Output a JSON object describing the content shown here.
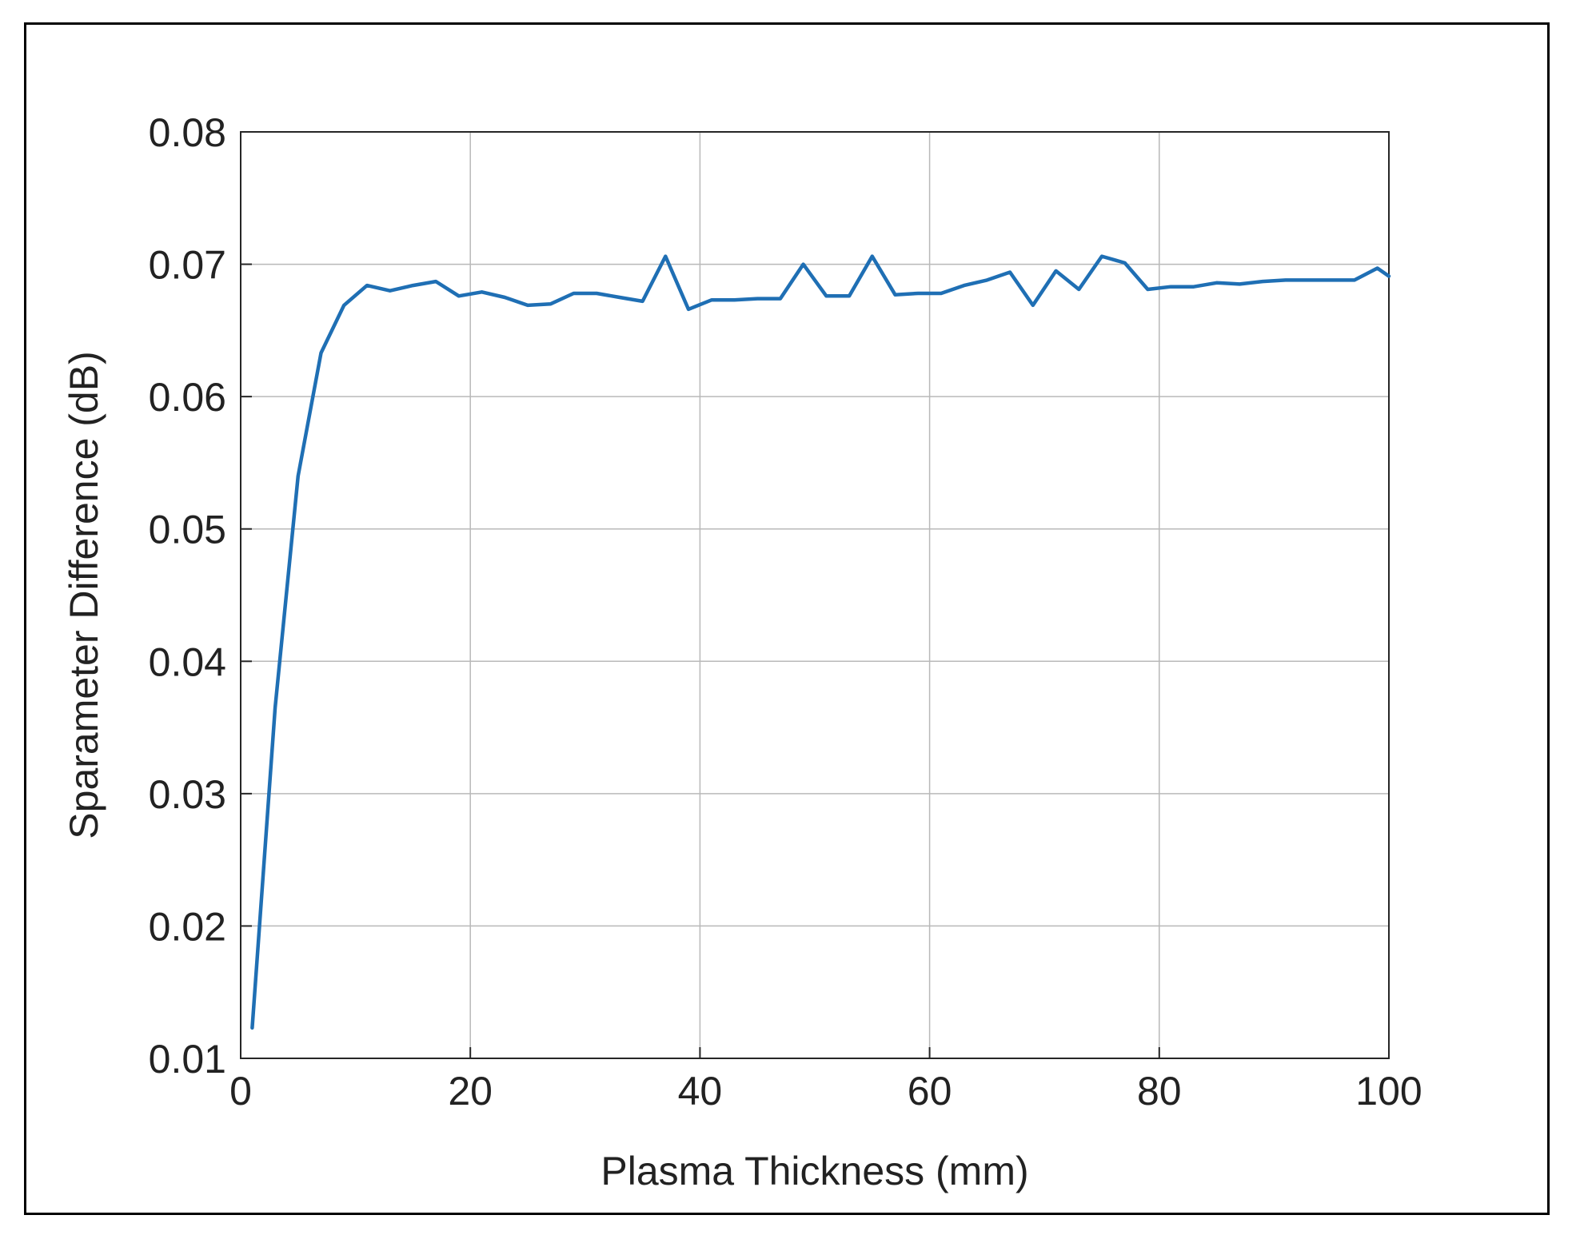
{
  "chart_data": {
    "type": "line",
    "xlabel": "Plasma Thickness (mm)",
    "ylabel": "Sparameter Difference (dB)",
    "xlim": [
      0,
      100
    ],
    "ylim": [
      0.01,
      0.08
    ],
    "xticks": [
      0,
      20,
      40,
      60,
      80,
      100
    ],
    "xtick_labels": [
      "0",
      "20",
      "40",
      "60",
      "80",
      "100"
    ],
    "yticks": [
      0.01,
      0.02,
      0.03,
      0.04,
      0.05,
      0.06,
      0.07,
      0.08
    ],
    "ytick_labels": [
      "0.01",
      "0.02",
      "0.03",
      "0.04",
      "0.05",
      "0.06",
      "0.07",
      "0.08"
    ],
    "grid": true,
    "line_color": "#1f6fb4",
    "series": [
      {
        "x": [
          1,
          3,
          5,
          7,
          9,
          11,
          13,
          15,
          17,
          19,
          21,
          23,
          25,
          27,
          29,
          31,
          33,
          35,
          37,
          39,
          41,
          43,
          45,
          47,
          49,
          51,
          53,
          55,
          57,
          59,
          61,
          63,
          65,
          67,
          69,
          71,
          73,
          75,
          77,
          79,
          81,
          83,
          85,
          87,
          89,
          91,
          93,
          95,
          97,
          99,
          100
        ],
        "y": [
          0.0123,
          0.0365,
          0.054,
          0.0633,
          0.0669,
          0.0684,
          0.068,
          0.0684,
          0.0687,
          0.0676,
          0.0679,
          0.0675,
          0.0669,
          0.067,
          0.0678,
          0.0678,
          0.0675,
          0.0672,
          0.0706,
          0.0666,
          0.0673,
          0.0673,
          0.0674,
          0.0674,
          0.07,
          0.0676,
          0.0676,
          0.0706,
          0.0677,
          0.0678,
          0.0678,
          0.0684,
          0.0688,
          0.0694,
          0.0669,
          0.0695,
          0.0681,
          0.0706,
          0.0701,
          0.0681,
          0.0683,
          0.0683,
          0.0686,
          0.0685,
          0.0687,
          0.0688,
          0.0688,
          0.0688,
          0.0688,
          0.0697,
          0.0691
        ]
      }
    ]
  }
}
